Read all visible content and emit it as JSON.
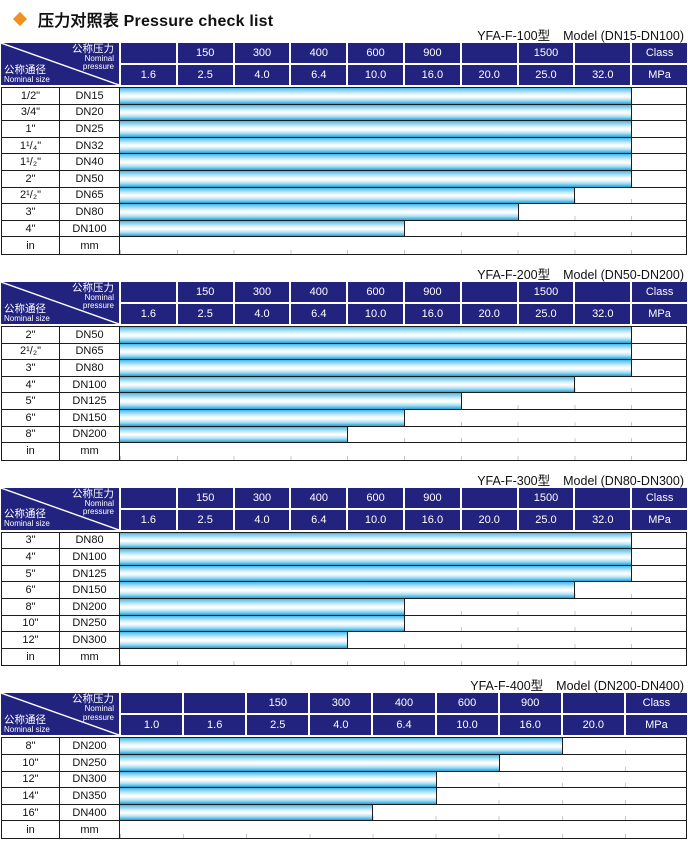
{
  "page": {
    "title": "压力对照表 Pressure check list",
    "title_icon": "diamond-icon"
  },
  "colors": {
    "accent": "#f0921f",
    "navy": "#22227f",
    "grid": "#1c1c1c",
    "tick": "#c8c8c8",
    "bar_edge": "#2aa3d8",
    "bar_mid": "#ffffff"
  },
  "corner": {
    "top_cn": "公称压力",
    "top_en1": "Nominal",
    "top_en2": "pressure",
    "bottom_cn": "公称通径",
    "bottom_en": "Nominal size"
  },
  "tables": [
    {
      "model": "YFA-F-100型",
      "range": "Model (DN15-DN100)",
      "class_row": [
        "",
        "150",
        "300",
        "400",
        "600",
        "900",
        "",
        "1500",
        "",
        "Class"
      ],
      "mpa_row": [
        "1.6",
        "2.5",
        "4.0",
        "6.4",
        "10.0",
        "16.0",
        "20.0",
        "25.0",
        "32.0",
        "MPa"
      ],
      "rows": [
        {
          "size": "1/2\"",
          "dn": "DN15",
          "span": 9,
          "mpa": 32.0
        },
        {
          "size": "3/4\"",
          "dn": "DN20",
          "span": 9,
          "mpa": 32.0
        },
        {
          "size": "1\"",
          "dn": "DN25",
          "span": 9,
          "mpa": 32.0
        },
        {
          "size": "1¹/₄\"",
          "dn": "DN32",
          "span": 9,
          "mpa": 32.0
        },
        {
          "size": "1¹/₂\"",
          "dn": "DN40",
          "span": 9,
          "mpa": 32.0
        },
        {
          "size": "2\"",
          "dn": "DN50",
          "span": 9,
          "mpa": 32.0
        },
        {
          "size": "2¹/₂\"",
          "dn": "DN65",
          "span": 8,
          "mpa": 25.0
        },
        {
          "size": "3\"",
          "dn": "DN80",
          "span": 7,
          "mpa": 20.0
        },
        {
          "size": "4\"",
          "dn": "DN100",
          "span": 5,
          "mpa": 10.0
        }
      ],
      "unit_row": {
        "size": "in",
        "dn": "mm"
      }
    },
    {
      "model": "YFA-F-200型",
      "range": "Model (DN50-DN200)",
      "class_row": [
        "",
        "150",
        "300",
        "400",
        "600",
        "900",
        "",
        "1500",
        "",
        "Class"
      ],
      "mpa_row": [
        "1.6",
        "2.5",
        "4.0",
        "6.4",
        "10.0",
        "16.0",
        "20.0",
        "25.0",
        "32.0",
        "MPa"
      ],
      "rows": [
        {
          "size": "2\"",
          "dn": "DN50",
          "span": 9,
          "mpa": 32.0
        },
        {
          "size": "2¹/₂\"",
          "dn": "DN65",
          "span": 9,
          "mpa": 32.0
        },
        {
          "size": "3\"",
          "dn": "DN80",
          "span": 9,
          "mpa": 32.0
        },
        {
          "size": "4\"",
          "dn": "DN100",
          "span": 8,
          "mpa": 25.0
        },
        {
          "size": "5\"",
          "dn": "DN125",
          "span": 6,
          "mpa": 16.0
        },
        {
          "size": "6\"",
          "dn": "DN150",
          "span": 5,
          "mpa": 10.0
        },
        {
          "size": "8\"",
          "dn": "DN200",
          "span": 4,
          "mpa": 6.4
        }
      ],
      "unit_row": {
        "size": "in",
        "dn": "mm"
      }
    },
    {
      "model": "YFA-F-300型",
      "range": "Model (DN80-DN300)",
      "class_row": [
        "",
        "150",
        "300",
        "400",
        "600",
        "900",
        "",
        "1500",
        "",
        "Class"
      ],
      "mpa_row": [
        "1.6",
        "2.5",
        "4.0",
        "6.4",
        "10.0",
        "16.0",
        "20.0",
        "25.0",
        "32.0",
        "MPa"
      ],
      "rows": [
        {
          "size": "3\"",
          "dn": "DN80",
          "span": 9,
          "mpa": 32.0
        },
        {
          "size": "4\"",
          "dn": "DN100",
          "span": 9,
          "mpa": 32.0
        },
        {
          "size": "5\"",
          "dn": "DN125",
          "span": 9,
          "mpa": 32.0
        },
        {
          "size": "6\"",
          "dn": "DN150",
          "span": 8,
          "mpa": 25.0
        },
        {
          "size": "8\"",
          "dn": "DN200",
          "span": 5,
          "mpa": 10.0
        },
        {
          "size": "10\"",
          "dn": "DN250",
          "span": 5,
          "mpa": 10.0
        },
        {
          "size": "12\"",
          "dn": "DN300",
          "span": 4,
          "mpa": 6.4
        }
      ],
      "unit_row": {
        "size": "in",
        "dn": "mm"
      }
    },
    {
      "model": "YFA-F-400型",
      "range": "Model (DN200-DN400)",
      "class_row": [
        "",
        "",
        "150",
        "300",
        "400",
        "600",
        "900",
        "",
        "Class"
      ],
      "mpa_row": [
        "1.0",
        "1.6",
        "2.5",
        "4.0",
        "6.4",
        "10.0",
        "16.0",
        "20.0",
        "MPa"
      ],
      "rows": [
        {
          "size": "8\"",
          "dn": "DN200",
          "span": 7,
          "mpa": 16.0
        },
        {
          "size": "10\"",
          "dn": "DN250",
          "span": 6,
          "mpa": 10.0
        },
        {
          "size": "12\"",
          "dn": "DN300",
          "span": 5,
          "mpa": 6.4
        },
        {
          "size": "14\"",
          "dn": "DN350",
          "span": 5,
          "mpa": 6.4
        },
        {
          "size": "16\"",
          "dn": "DN400",
          "span": 4,
          "mpa": 4.0
        }
      ],
      "unit_row": {
        "size": "in",
        "dn": "mm"
      }
    }
  ],
  "chart_data": [
    {
      "type": "bar",
      "orientation": "horizontal",
      "title": "YFA-F-100型 Model (DN15-DN100)",
      "categories": [
        "DN15",
        "DN20",
        "DN25",
        "DN32",
        "DN40",
        "DN50",
        "DN65",
        "DN80",
        "DN100"
      ],
      "values": [
        32.0,
        32.0,
        32.0,
        32.0,
        32.0,
        32.0,
        25.0,
        20.0,
        10.0
      ],
      "xlabel": "MPa",
      "x_ticks": [
        1.6,
        2.5,
        4.0,
        6.4,
        10.0,
        16.0,
        20.0,
        25.0,
        32.0
      ],
      "class_ticks": [
        150,
        300,
        400,
        600,
        900,
        1500
      ],
      "legend": "none",
      "grid": "column-ticks"
    },
    {
      "type": "bar",
      "orientation": "horizontal",
      "title": "YFA-F-200型 Model (DN50-DN200)",
      "categories": [
        "DN50",
        "DN65",
        "DN80",
        "DN100",
        "DN125",
        "DN150",
        "DN200"
      ],
      "values": [
        32.0,
        32.0,
        32.0,
        25.0,
        16.0,
        10.0,
        6.4
      ],
      "xlabel": "MPa",
      "x_ticks": [
        1.6,
        2.5,
        4.0,
        6.4,
        10.0,
        16.0,
        20.0,
        25.0,
        32.0
      ],
      "class_ticks": [
        150,
        300,
        400,
        600,
        900,
        1500
      ],
      "legend": "none",
      "grid": "column-ticks"
    },
    {
      "type": "bar",
      "orientation": "horizontal",
      "title": "YFA-F-300型 Model (DN80-DN300)",
      "categories": [
        "DN80",
        "DN100",
        "DN125",
        "DN150",
        "DN200",
        "DN250",
        "DN300"
      ],
      "values": [
        32.0,
        32.0,
        32.0,
        25.0,
        10.0,
        10.0,
        6.4
      ],
      "xlabel": "MPa",
      "x_ticks": [
        1.6,
        2.5,
        4.0,
        6.4,
        10.0,
        16.0,
        20.0,
        25.0,
        32.0
      ],
      "class_ticks": [
        150,
        300,
        400,
        600,
        900,
        1500
      ],
      "legend": "none",
      "grid": "column-ticks"
    },
    {
      "type": "bar",
      "orientation": "horizontal",
      "title": "YFA-F-400型 Model (DN200-DN400)",
      "categories": [
        "DN200",
        "DN250",
        "DN300",
        "DN350",
        "DN400"
      ],
      "values": [
        16.0,
        10.0,
        6.4,
        6.4,
        4.0
      ],
      "xlabel": "MPa",
      "x_ticks": [
        1.0,
        1.6,
        2.5,
        4.0,
        6.4,
        10.0,
        16.0,
        20.0
      ],
      "class_ticks": [
        150,
        300,
        400,
        600,
        900
      ],
      "legend": "none",
      "grid": "column-ticks"
    }
  ]
}
